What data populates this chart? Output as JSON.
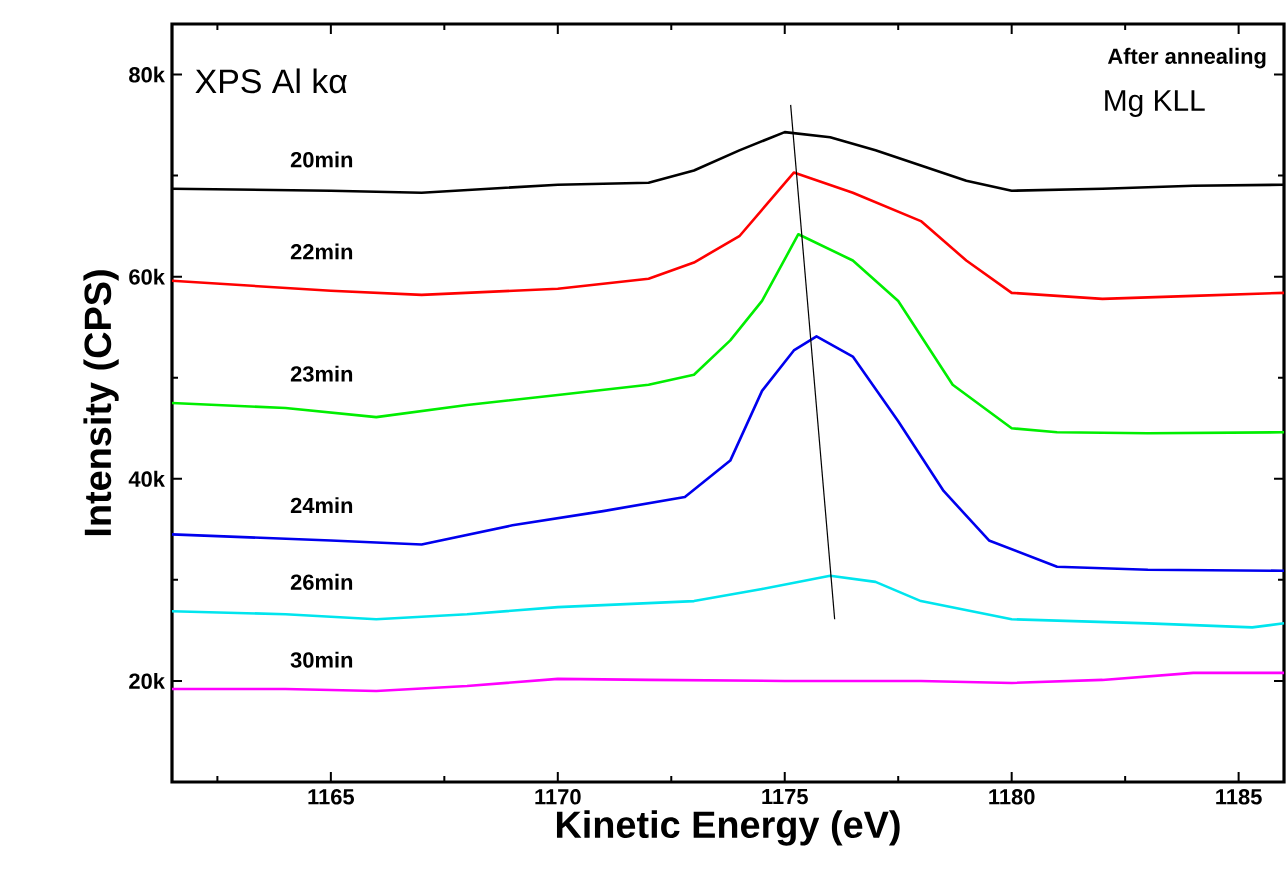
{
  "chart_data": {
    "type": "line",
    "xlabel": "Kinetic Energy (eV)",
    "ylabel": "Intensity (CPS)",
    "annotations": [
      "XPS  Al kα",
      "After annealing",
      "Mg KLL"
    ],
    "xlim": [
      1161.5,
      1186.0
    ],
    "ylim": [
      10000,
      85000
    ],
    "xticks": [
      {
        "value": 1162.5,
        "label": null
      },
      1165,
      {
        "value": 1167.5,
        "label": null
      },
      1170,
      {
        "value": 1172.5,
        "label": null
      },
      1175,
      {
        "value": 1177.5,
        "label": null
      },
      1180,
      {
        "value": 1182.5,
        "label": null
      },
      1185
    ],
    "yticks": [
      {
        "value": 20000,
        "label": "20k"
      },
      {
        "value": 30000,
        "label": null
      },
      {
        "value": 40000,
        "label": "40k"
      },
      {
        "value": 50000,
        "label": null
      },
      {
        "value": 60000,
        "label": "60k"
      },
      {
        "value": 70000,
        "label": null
      },
      {
        "value": 80000,
        "label": "80k"
      }
    ],
    "grid": false,
    "marker": "none",
    "line_style": "solid",
    "series": [
      {
        "name": "20min",
        "color": "#000000",
        "x": [
          1161.5,
          1165,
          1167,
          1170,
          1172,
          1173,
          1174,
          1175,
          1176,
          1177,
          1178,
          1179,
          1180,
          1182,
          1184,
          1186
        ],
        "values": [
          68700,
          68500,
          68300,
          69100,
          69300,
          70500,
          72500,
          74300,
          73800,
          72500,
          71000,
          69500,
          68500,
          68700,
          69000,
          69100
        ]
      },
      {
        "name": "22min",
        "color": "#ff0000",
        "x": [
          1161.5,
          1165,
          1167,
          1170,
          1172,
          1173,
          1174,
          1175.2,
          1176.5,
          1178,
          1179,
          1180,
          1182,
          1184,
          1186
        ],
        "values": [
          59600,
          58600,
          58200,
          58800,
          59800,
          61400,
          64000,
          70300,
          68300,
          65500,
          61600,
          58400,
          57800,
          58100,
          58400
        ]
      },
      {
        "name": "23min",
        "color": "#00ee00",
        "x": [
          1161.5,
          1164,
          1166,
          1168,
          1170,
          1172,
          1173,
          1173.8,
          1174.5,
          1175.3,
          1176.5,
          1177.5,
          1178.7,
          1180,
          1181,
          1183,
          1186
        ],
        "values": [
          47500,
          47000,
          46100,
          47300,
          48300,
          49300,
          50300,
          53700,
          57600,
          64200,
          61600,
          57600,
          49300,
          45000,
          44600,
          44500,
          44600
        ]
      },
      {
        "name": "24min",
        "color": "#0000ee",
        "x": [
          1161.5,
          1165,
          1167,
          1169,
          1171,
          1172.8,
          1173.8,
          1174.5,
          1175.2,
          1175.7,
          1176.5,
          1177.5,
          1178.5,
          1179.5,
          1181,
          1183,
          1186
        ],
        "values": [
          34500,
          33900,
          33500,
          35400,
          36800,
          38200,
          41800,
          48700,
          52700,
          54100,
          52100,
          45700,
          38800,
          33900,
          31300,
          31000,
          30900
        ]
      },
      {
        "name": "26min",
        "color": "#00e5ee",
        "x": [
          1161.5,
          1164,
          1166,
          1168,
          1170,
          1173,
          1174.5,
          1176,
          1177,
          1178,
          1180,
          1183,
          1185.3,
          1186
        ],
        "values": [
          26900,
          26600,
          26100,
          26600,
          27300,
          27900,
          29100,
          30400,
          29800,
          27900,
          26100,
          25700,
          25300,
          25700
        ]
      },
      {
        "name": "30min",
        "color": "#ff00ff",
        "x": [
          1161.5,
          1164,
          1166,
          1168,
          1170,
          1172,
          1175,
          1178,
          1180,
          1182,
          1184,
          1186
        ],
        "values": [
          19200,
          19200,
          19000,
          19500,
          20200,
          20100,
          20000,
          20000,
          19800,
          20100,
          20800,
          20800
        ]
      },
      {
        "type": "line",
        "color": "#000000",
        "x": [
          1175.13,
          1176.1
        ],
        "values": [
          77000,
          26100
        ]
      }
    ]
  }
}
